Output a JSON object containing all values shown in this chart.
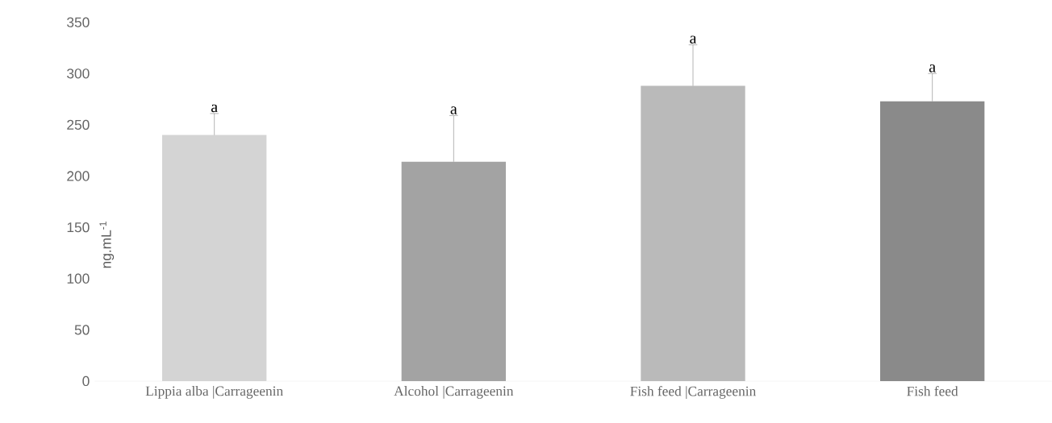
{
  "chart_data": {
    "type": "bar",
    "ylabel": "ng.mL$^{-1}$",
    "categories": [
      "Lippia alba |Carrageenin",
      "Alcohol |Carrageenin",
      "Fish feed |Carrageenin",
      "Fish feed"
    ],
    "values": [
      240,
      214,
      288,
      273
    ],
    "colors": [
      "#d4d4d4",
      "#a3a3a3",
      "#bababa",
      "#8a8a8a"
    ],
    "errors": [
      [
        240,
        261
      ],
      [
        214,
        259
      ],
      [
        288,
        328
      ],
      [
        273,
        300
      ]
    ],
    "ylim": [
      0,
      350
    ],
    "yticks": [
      0,
      50,
      100,
      150,
      200,
      250,
      300,
      350
    ],
    "annotations": [
      {
        "text": "a",
        "x": "Lippia alba |Carrageenin",
        "y": 261
      },
      {
        "text": "a",
        "x": "Alcohol |Carrageenin",
        "y": 259
      },
      {
        "text": "a",
        "x": "Fish feed |Carrageenin",
        "y": 328
      },
      {
        "text": "a",
        "x": "Fish feed",
        "y": 300
      }
    ]
  }
}
